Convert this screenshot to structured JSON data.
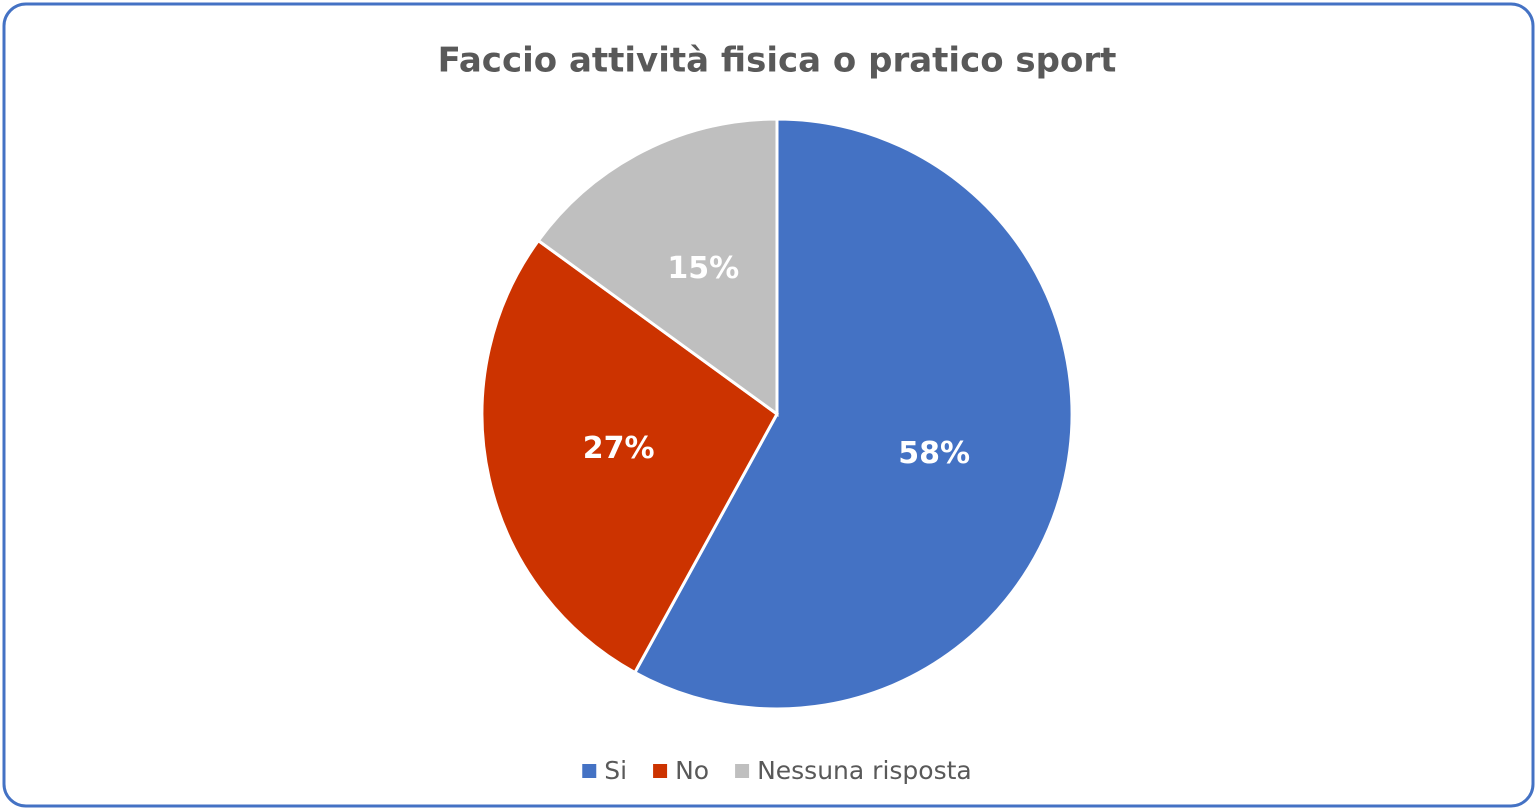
{
  "chart_data": {
    "type": "pie",
    "title": "Faccio attività fisica o pratico sport",
    "categories": [
      "Si",
      "No",
      "Nessuna risposta"
    ],
    "values": [
      58,
      27,
      15
    ],
    "value_labels": [
      "58%",
      "27%",
      "15%"
    ],
    "colors": [
      "#4472c4",
      "#cc3300",
      "#bfbfbf"
    ],
    "legend": "bottom"
  }
}
